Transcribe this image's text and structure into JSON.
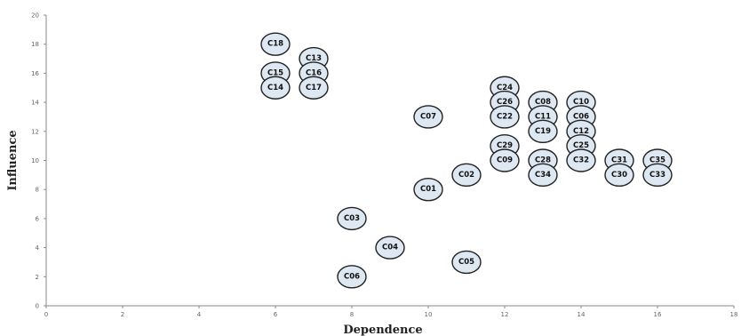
{
  "chart_data": {
    "type": "scatter",
    "xlabel": "Dependence",
    "ylabel": "Influence",
    "xlim": [
      0,
      18
    ],
    "ylim": [
      0,
      20
    ],
    "xticks": [
      0,
      2,
      4,
      6,
      8,
      10,
      12,
      14,
      16,
      18
    ],
    "yticks": [
      0,
      2,
      4,
      6,
      8,
      10,
      12,
      14,
      16,
      18,
      20
    ],
    "grid": false,
    "marker_fill": "#dde8f2",
    "marker_stroke": "#222222",
    "points": [
      {
        "label": "C18",
        "x": 6,
        "y": 18
      },
      {
        "label": "C13",
        "x": 7,
        "y": 17
      },
      {
        "label": "C15",
        "x": 6,
        "y": 16
      },
      {
        "label": "C16",
        "x": 7,
        "y": 16
      },
      {
        "label": "C14",
        "x": 6,
        "y": 15
      },
      {
        "label": "C17",
        "x": 7,
        "y": 15
      },
      {
        "label": "C07",
        "x": 10,
        "y": 13
      },
      {
        "label": "C24",
        "x": 12,
        "y": 15
      },
      {
        "label": "C26",
        "x": 12,
        "y": 14
      },
      {
        "label": "C22",
        "x": 12,
        "y": 13
      },
      {
        "label": "C29",
        "x": 12,
        "y": 11
      },
      {
        "label": "C09",
        "x": 12,
        "y": 10
      },
      {
        "label": "C08",
        "x": 13,
        "y": 14
      },
      {
        "label": "C11",
        "x": 13,
        "y": 13
      },
      {
        "label": "C19",
        "x": 13,
        "y": 12
      },
      {
        "label": "C28",
        "x": 13,
        "y": 10
      },
      {
        "label": "C34",
        "x": 13,
        "y": 9
      },
      {
        "label": "C10",
        "x": 14,
        "y": 14
      },
      {
        "label": "C06",
        "x": 14,
        "y": 13
      },
      {
        "label": "C12",
        "x": 14,
        "y": 12
      },
      {
        "label": "C25",
        "x": 14,
        "y": 11
      },
      {
        "label": "C32",
        "x": 14,
        "y": 10
      },
      {
        "label": "C31",
        "x": 15,
        "y": 10
      },
      {
        "label": "C30",
        "x": 15,
        "y": 9
      },
      {
        "label": "C35",
        "x": 16,
        "y": 10
      },
      {
        "label": "C33",
        "x": 16,
        "y": 9
      },
      {
        "label": "C02",
        "x": 11,
        "y": 9
      },
      {
        "label": "C01",
        "x": 10,
        "y": 8
      },
      {
        "label": "C03",
        "x": 8,
        "y": 6
      },
      {
        "label": "C04",
        "x": 9,
        "y": 4
      },
      {
        "label": "C05",
        "x": 11,
        "y": 3
      },
      {
        "label": "C06",
        "x": 8,
        "y": 2
      }
    ]
  }
}
